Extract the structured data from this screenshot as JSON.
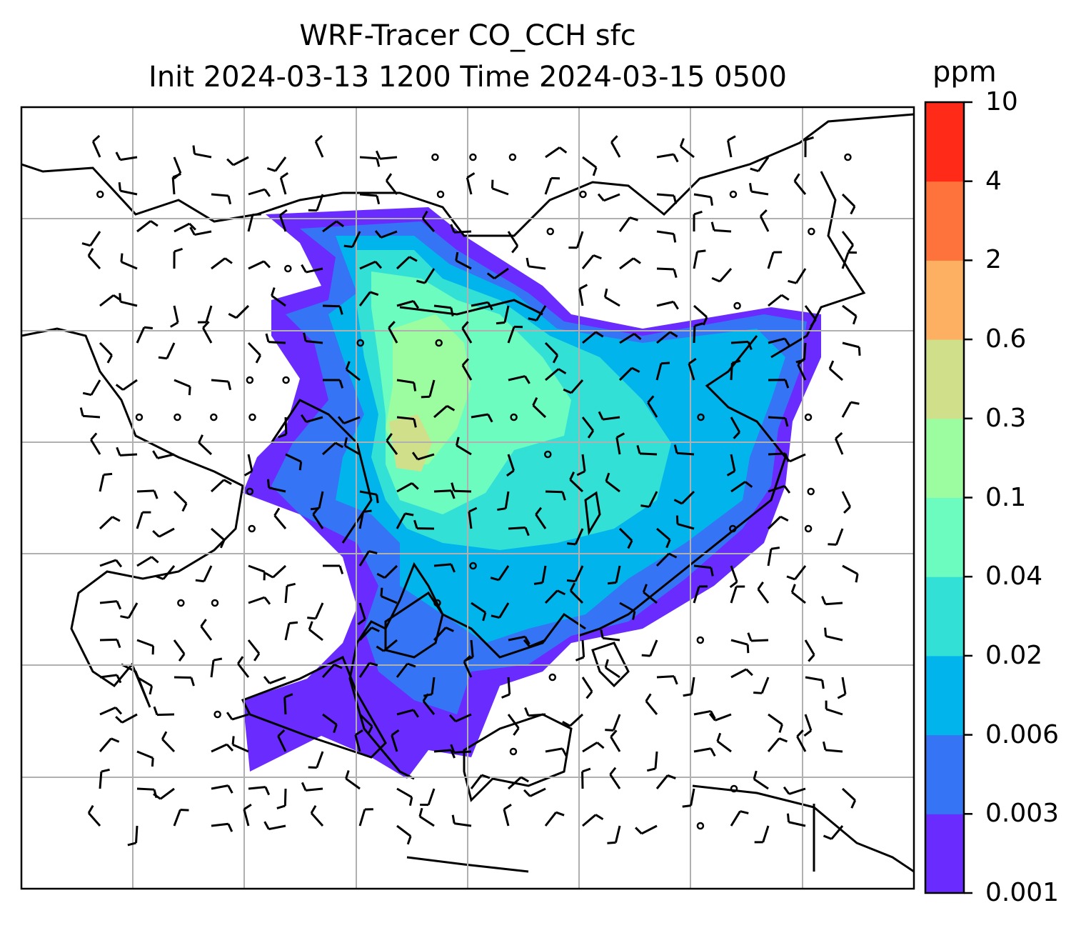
{
  "title": {
    "line1": "WRF-Tracer CO_CCH sfc",
    "line2": "Init 2024-03-13 1200 Time 2024-03-15 0500"
  },
  "colorbar": {
    "unit": "ppm",
    "levels": [
      "0.001",
      "0.003",
      "0.006",
      "0.02",
      "0.04",
      "0.1",
      "0.3",
      "0.6",
      "2",
      "4",
      "10"
    ],
    "colors": [
      "#6a2bff",
      "#3575f5",
      "#02b4ec",
      "#33e0d6",
      "#6cfcc0",
      "#9bfca0",
      "#d0e08a",
      "#fdb062",
      "#fe733c",
      "#ff2a17"
    ]
  },
  "map": {
    "variable": "CO_CCH surface tracer",
    "overlays": [
      "coastlines",
      "borders",
      "wind-barbs",
      "gridlines"
    ]
  }
}
